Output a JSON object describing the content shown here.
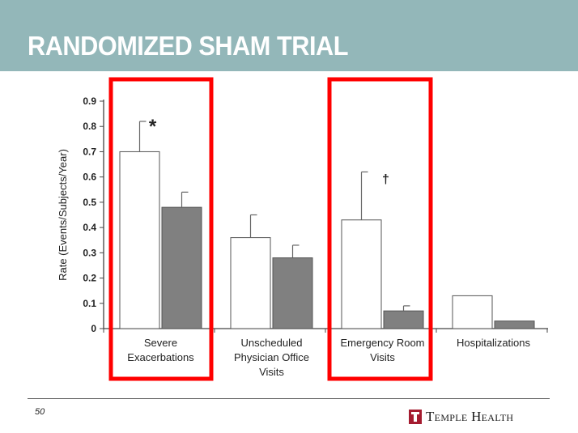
{
  "slide": {
    "title": "RANDOMIZED SHAM TRIAL",
    "page_number": "50",
    "logo_text": "Temple Health",
    "title_band_color": "#93b7b9",
    "logo_color": "#a51c30"
  },
  "chart_data": {
    "type": "bar",
    "ylabel": "Rate (Events/Subjects/Year)",
    "xlabel": "",
    "ylim": [
      0,
      0.9
    ],
    "yticks": [
      "0",
      "0.1",
      "0.2",
      "0.3",
      "0.4",
      "0.5",
      "0.6",
      "0.7",
      "0.8",
      "0.9"
    ],
    "categories": [
      [
        "Severe",
        "Exacerbations"
      ],
      [
        "Unscheduled",
        "Physician Office",
        "Visits"
      ],
      [
        "Emergency Room",
        "Visits"
      ],
      [
        "Hospitalizations"
      ]
    ],
    "series": [
      {
        "values": [
          0.7,
          0.36,
          0.43,
          0.13
        ],
        "error": [
          0.12,
          0.09,
          0.19,
          0
        ],
        "color": "#ffffff"
      },
      {
        "values": [
          0.48,
          0.28,
          0.07,
          0.03
        ],
        "error": [
          0.06,
          0.05,
          0.02,
          0
        ],
        "color": "#808080"
      }
    ],
    "annotations": [
      {
        "text": "*",
        "category": 0
      },
      {
        "text": "†",
        "category": 2
      }
    ],
    "highlighted_categories": [
      0,
      2
    ],
    "highlight_color": "#ff0000",
    "grid": false
  }
}
